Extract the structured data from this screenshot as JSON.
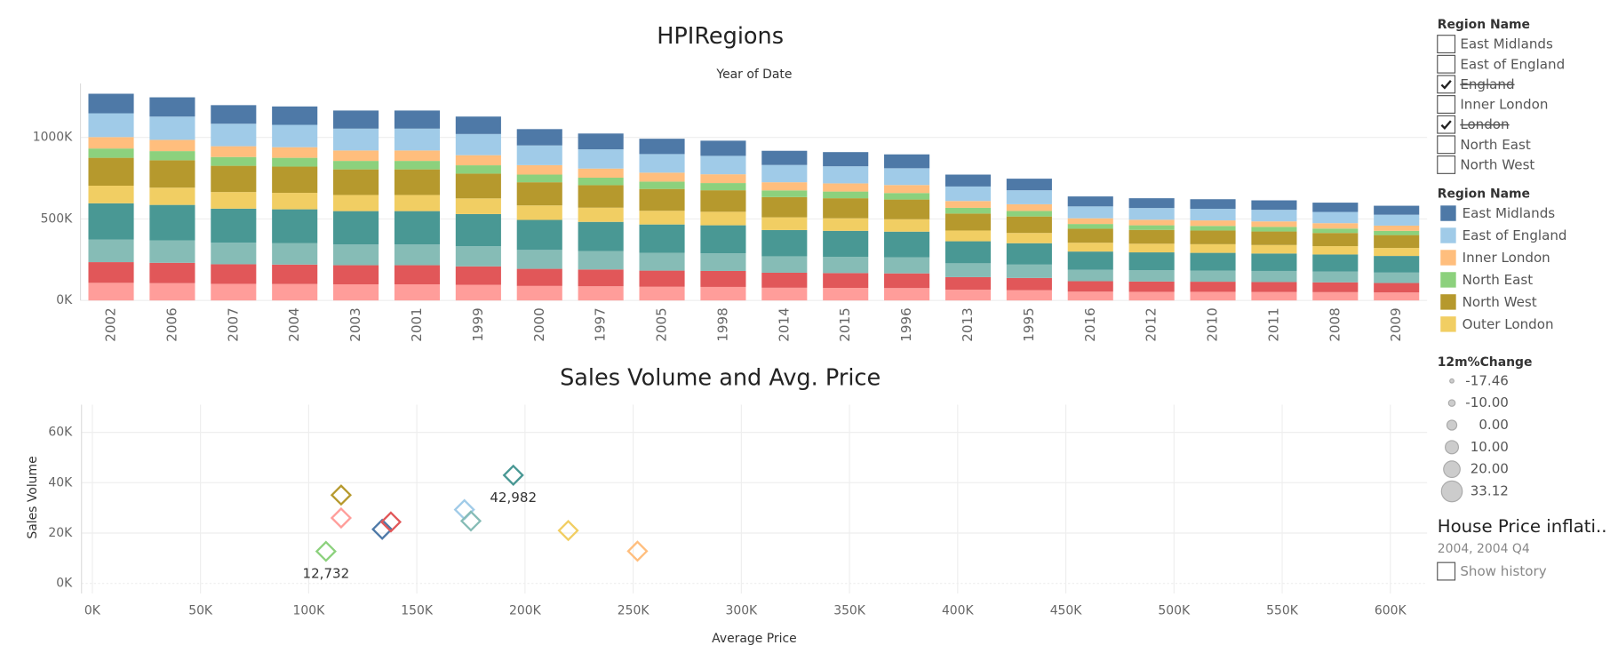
{
  "chart_data": [
    {
      "type": "stacked_bar",
      "title": "HPIRegions",
      "subtitle": "Year of Date",
      "legend_title": "Region Name",
      "categories": [
        "2002",
        "2006",
        "2007",
        "2004",
        "2003",
        "2001",
        "1999",
        "2000",
        "1997",
        "2005",
        "1998",
        "2014",
        "2015",
        "1996",
        "2013",
        "1995",
        "2016",
        "2012",
        "2010",
        "2011",
        "2008",
        "2009"
      ],
      "ylim": [
        0,
        1300000
      ],
      "yticks": [
        {
          "value": 0,
          "label": "0K"
        },
        {
          "value": 500000,
          "label": "500K"
        },
        {
          "value": 1000000,
          "label": "1000K"
        }
      ],
      "grid": true,
      "series": [
        {
          "name": null,
          "color": "#ff9d9a",
          "values": [
            108000,
            106000,
            102000,
            101000,
            99000,
            99000,
            96000,
            89000,
            87000,
            84000,
            83000,
            78000,
            77000,
            76000,
            66000,
            63000,
            54000,
            53000,
            53000,
            52000,
            51000,
            49000
          ]
        },
        {
          "name": null,
          "color": "#e15759",
          "values": [
            127000,
            125000,
            120000,
            119000,
            117000,
            117000,
            113000,
            105000,
            103000,
            99000,
            98000,
            92000,
            91000,
            90000,
            77000,
            75000,
            64000,
            63000,
            62000,
            61000,
            60000,
            58000
          ]
        },
        {
          "name": null,
          "color": "#86bcb6",
          "values": [
            139000,
            137000,
            132000,
            131000,
            128000,
            128000,
            124000,
            116000,
            113000,
            109000,
            108000,
            101000,
            100000,
            99000,
            85000,
            82000,
            70000,
            69000,
            68000,
            68000,
            66000,
            64000
          ]
        },
        {
          "name": null,
          "color": "#499894",
          "values": [
            222000,
            218000,
            209000,
            208000,
            204000,
            204000,
            197000,
            184000,
            179000,
            174000,
            172000,
            161000,
            159000,
            157000,
            135000,
            131000,
            112000,
            110000,
            109000,
            107000,
            105000,
            102000
          ]
        },
        {
          "name": "Outer London",
          "color": "#f1ce63",
          "values": [
            108000,
            106000,
            102000,
            101000,
            99000,
            99000,
            96000,
            89000,
            87000,
            84000,
            83000,
            78000,
            77000,
            76000,
            66000,
            63000,
            54000,
            53000,
            53000,
            52000,
            51000,
            49000
          ]
        },
        {
          "name": "North West",
          "color": "#b6992d",
          "values": [
            171000,
            168000,
            161000,
            161000,
            157000,
            157000,
            152000,
            142000,
            138000,
            134000,
            132000,
            124000,
            123000,
            121000,
            104000,
            101000,
            86000,
            85000,
            84000,
            83000,
            81000,
            79000
          ]
        },
        {
          "name": "North East",
          "color": "#8cd17d",
          "values": [
            57000,
            56000,
            54000,
            54000,
            52000,
            52000,
            51000,
            47000,
            46000,
            45000,
            44000,
            41000,
            41000,
            40000,
            35000,
            34000,
            29000,
            28000,
            28000,
            28000,
            27000,
            26000
          ]
        },
        {
          "name": "Inner London",
          "color": "#ffbe7d",
          "values": [
            70000,
            69000,
            66000,
            65000,
            64000,
            64000,
            62000,
            58000,
            56000,
            55000,
            54000,
            50000,
            50000,
            49000,
            42000,
            41000,
            35000,
            34000,
            34000,
            34000,
            33000,
            32000
          ]
        },
        {
          "name": "East of England",
          "color": "#a0cbe8",
          "values": [
            146000,
            143000,
            138000,
            137000,
            134000,
            134000,
            130000,
            121000,
            118000,
            114000,
            113000,
            106000,
            105000,
            103000,
            89000,
            86000,
            73000,
            72000,
            71000,
            71000,
            69000,
            67000
          ]
        },
        {
          "name": "East Midlands",
          "color": "#4e79a7",
          "values": [
            120000,
            118000,
            114000,
            113000,
            111000,
            111000,
            107000,
            100000,
            97000,
            94000,
            93000,
            87000,
            87000,
            85000,
            73000,
            71000,
            61000,
            60000,
            59000,
            58000,
            57000,
            55000
          ]
        }
      ]
    },
    {
      "type": "scatter",
      "title": "Sales Volume and Avg. Price",
      "x_label": "Average Price",
      "y_label": "Sales Volume",
      "x": [
        115000,
        115000,
        108000,
        134000,
        138000,
        172000,
        175000,
        194600,
        220000,
        252000
      ],
      "values": [
        35100,
        26000,
        12732,
        21500,
        24400,
        29300,
        24800,
        42982,
        21000,
        12800
      ],
      "value_labels": [
        null,
        null,
        "12,732",
        null,
        null,
        null,
        null,
        "42,982",
        null,
        null
      ],
      "colors": [
        "#b6992d",
        "#ff9d9a",
        "#8cd17d",
        "#4e79a7",
        "#e15759",
        "#a0cbe8",
        "#86bcb6",
        "#499894",
        "#f1ce63",
        "#ffbe7d"
      ],
      "xlim": [
        -5000,
        617000
      ],
      "ylim": [
        -4000,
        71000
      ],
      "xticks": [
        {
          "value": 0,
          "label": "0K"
        },
        {
          "value": 50000,
          "label": "50K"
        },
        {
          "value": 100000,
          "label": "100K"
        },
        {
          "value": 150000,
          "label": "150K"
        },
        {
          "value": 200000,
          "label": "200K"
        },
        {
          "value": 250000,
          "label": "250K"
        },
        {
          "value": 300000,
          "label": "300K"
        },
        {
          "value": 350000,
          "label": "350K"
        },
        {
          "value": 400000,
          "label": "400K"
        },
        {
          "value": 450000,
          "label": "450K"
        },
        {
          "value": 500000,
          "label": "500K"
        },
        {
          "value": 550000,
          "label": "550K"
        },
        {
          "value": 600000,
          "label": "600K"
        }
      ],
      "yticks": [
        {
          "value": 0,
          "label": "0K"
        },
        {
          "value": 20000,
          "label": "20K"
        },
        {
          "value": 40000,
          "label": "40K"
        },
        {
          "value": 60000,
          "label": "60K"
        }
      ],
      "grid": true,
      "size_legend": {
        "title": "12m%Change",
        "values": [
          -17.46,
          {
            "value": -10,
            "label": "-10.00"
          },
          {
            "value": 0,
            "label": "0.00"
          },
          {
            "value": 10,
            "label": "10.00"
          },
          {
            "value": 20,
            "label": "20.00"
          },
          33.12
        ]
      }
    }
  ],
  "filters": {
    "region": {
      "title": "Region Name",
      "items": [
        {
          "label": "East Midlands",
          "checked": false
        },
        {
          "label": "East of England",
          "checked": false
        },
        {
          "label": "England",
          "checked": true
        },
        {
          "label": "Inner London",
          "checked": false
        },
        {
          "label": "London",
          "checked": true
        },
        {
          "label": "North East",
          "checked": false
        },
        {
          "label": "North West",
          "checked": false
        }
      ]
    },
    "page": {
      "title": "House Price inflati..",
      "value": "2004, 2004 Q4",
      "option": "Show history",
      "checked": false
    }
  }
}
